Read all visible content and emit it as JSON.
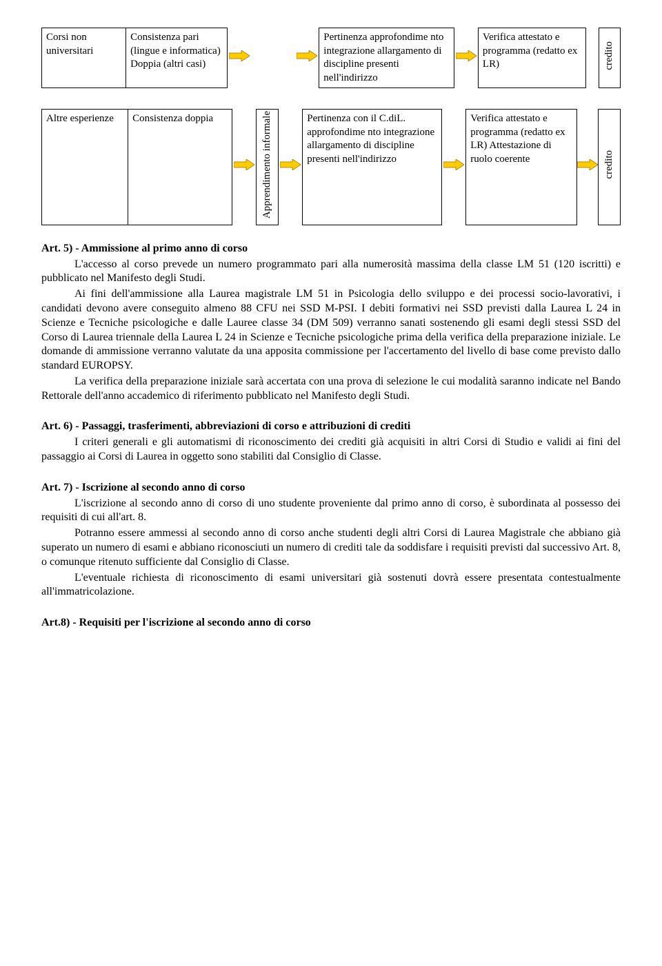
{
  "arrow": {
    "fill": "#ffcc00",
    "stroke": "#b8860b",
    "w": 30,
    "h": 16
  },
  "table1": {
    "colA": "Corsi non universitari",
    "colB": "Consistenza pari (lingue e informatica) Doppia (altri casi)",
    "colF": "Pertinenza approfondime nto integrazione allargamento di discipline presenti nell'indirizzo",
    "colH": "Verifica attestato e programma (redatto ex LR)",
    "vert1": "credito"
  },
  "table2": {
    "colA": "Altre esperienze",
    "colB": "Consistenza doppia",
    "vertD": "Apprendimento informale",
    "colF": "Pertinenza con il C.diL. approfondime nto integrazione allargamento di discipline presenti nell'indirizzo",
    "colH": "Verifica attestato e programma (redatto ex LR) Attestazione di ruolo coerente",
    "vert1": "credito"
  },
  "art5": {
    "heading": "Art. 5) - Ammissione al primo anno di corso",
    "p1": "L'accesso al corso prevede un numero programmato pari alla numerosità massima della classe LM 51 (120 iscritti) e pubblicato nel Manifesto degli Studi.",
    "p2": "Ai fini dell'ammissione alla Laurea magistrale LM 51 in Psicologia dello sviluppo e dei processi socio-lavorativi, i candidati devono avere conseguito almeno 88 CFU nei SSD M-PSI. I debiti formativi nei SSD previsti dalla Laurea L 24 in Scienze e Tecniche psicologiche e dalle Lauree classe 34 (DM 509) verranno sanati sostenendo gli esami degli stessi SSD del Corso di Laurea triennale della Laurea L 24 in Scienze e Tecniche psicologiche prima della verifica della preparazione iniziale. Le domande di ammissione verranno valutate da una apposita commissione per l'accertamento del livello di base come previsto dallo standard EUROPSY.",
    "p3": "La verifica della preparazione iniziale sarà accertata con una prova di selezione le cui modalità saranno indicate nel Bando Rettorale dell'anno accademico di riferimento pubblicato nel Manifesto degli Studi."
  },
  "art6": {
    "heading": "Art. 6) - Passaggi, trasferimenti, abbreviazioni di corso e attribuzioni di crediti",
    "p1": "I criteri generali e gli automatismi di riconoscimento dei crediti già acquisiti in altri Corsi di Studio e validi ai fini del passaggio ai Corsi di Laurea in oggetto sono stabiliti dal Consiglio di Classe."
  },
  "art7": {
    "heading": "Art. 7) - Iscrizione al secondo anno di corso",
    "p1": "L'iscrizione al secondo anno di corso di uno studente proveniente dal primo anno di corso, è subordinata al possesso dei requisiti di cui all'art. 8.",
    "p2": "Potranno essere ammessi al secondo anno di corso anche studenti degli altri Corsi di Laurea Magistrale che abbiano già superato un numero di esami e abbiano riconosciuti un numero di crediti tale da soddisfare i requisiti previsti dal successivo Art. 8, o comunque ritenuto sufficiente dal Consiglio di Classe.",
    "p3": "L'eventuale richiesta di riconoscimento di esami universitari già sostenuti dovrà essere presentata contestualmente all'immatricolazione."
  },
  "art8": {
    "heading": "Art.8) - Requisiti per l'iscrizione al secondo anno di corso"
  }
}
